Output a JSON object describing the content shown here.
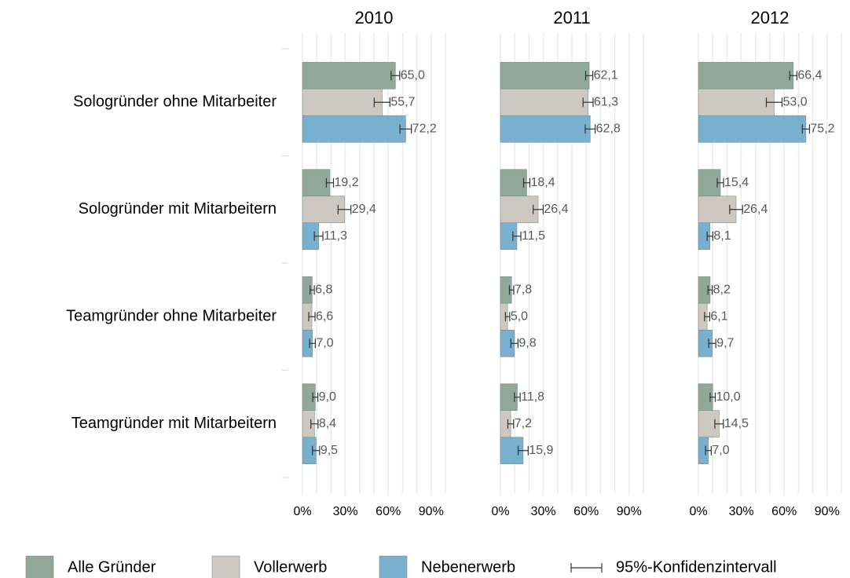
{
  "chart_data": [
    {
      "type": "bar",
      "orientation": "horizontal",
      "title": "2010",
      "categories": [
        "Sologründer ohne Mitarbeiter",
        "Sologründer mit Mitarbeitern",
        "Teamgründer ohne Mitarbeiter",
        "Teamgründer mit Mitarbeitern"
      ],
      "series": [
        {
          "name": "Alle Gründer",
          "color": "#8fa89a",
          "values": [
            65.0,
            19.2,
            6.8,
            9.0
          ],
          "value_labels": [
            "65,0",
            "19,2",
            "6,8",
            "9,0"
          ],
          "errors": [
            3.0,
            2.5,
            1.5,
            1.8
          ]
        },
        {
          "name": "Vollerwerb",
          "color": "#cdc8c2",
          "values": [
            55.7,
            29.4,
            6.6,
            8.4
          ],
          "value_labels": [
            "55,7",
            "29,4",
            "6,6",
            "8,4"
          ],
          "errors": [
            5.5,
            4.5,
            2.2,
            2.5
          ]
        },
        {
          "name": "Nebenerwerb",
          "color": "#79b0cf",
          "values": [
            72.2,
            11.3,
            7.0,
            9.5
          ],
          "value_labels": [
            "72,2",
            "11,3",
            "7,0",
            "9,5"
          ],
          "errors": [
            4.0,
            3.0,
            2.0,
            2.5
          ]
        }
      ],
      "error_label": "95%-Konfidenzintervall",
      "xlim": [
        -8,
        108
      ],
      "xticks": [
        {
          "value": 0,
          "label": "0%"
        },
        {
          "value": 30,
          "label": "30%"
        },
        {
          "value": 60,
          "label": "60%"
        },
        {
          "value": 90,
          "label": "90%"
        }
      ],
      "grid_xticks": [
        0,
        10,
        20,
        30,
        40,
        50,
        60,
        70,
        80,
        90,
        100
      ],
      "grid": true
    },
    {
      "type": "bar",
      "orientation": "horizontal",
      "title": "2011",
      "series": [
        {
          "name": "Alle Gründer",
          "color": "#8fa89a",
          "values": [
            62.1,
            18.4,
            7.8,
            11.8
          ],
          "value_labels": [
            "62,1",
            "18,4",
            "7,8",
            "11,8"
          ],
          "errors": [
            2.5,
            2.2,
            1.5,
            2.0
          ]
        },
        {
          "name": "Vollerwerb",
          "color": "#cdc8c2",
          "values": [
            61.3,
            26.4,
            5.0,
            7.2
          ],
          "value_labels": [
            "61,3",
            "26,4",
            "5,0",
            "7,2"
          ],
          "errors": [
            3.5,
            3.5,
            1.5,
            2.0
          ]
        },
        {
          "name": "Nebenerwerb",
          "color": "#79b0cf",
          "values": [
            62.8,
            11.5,
            9.8,
            15.9
          ],
          "value_labels": [
            "62,8",
            "11,5",
            "9,8",
            "15,9"
          ],
          "errors": [
            3.5,
            2.8,
            2.5,
            3.5
          ]
        }
      ],
      "xlim": [
        -8,
        108
      ],
      "xticks": [
        {
          "value": 0,
          "label": "0%"
        },
        {
          "value": 30,
          "label": "30%"
        },
        {
          "value": 60,
          "label": "60%"
        },
        {
          "value": 90,
          "label": "90%"
        }
      ],
      "grid_xticks": [
        0,
        10,
        20,
        30,
        40,
        50,
        60,
        70,
        80,
        90,
        100
      ],
      "grid": true
    },
    {
      "type": "bar",
      "orientation": "horizontal",
      "title": "2012",
      "series": [
        {
          "name": "Alle Gründer",
          "color": "#8fa89a",
          "values": [
            66.4,
            15.4,
            8.2,
            10.0
          ],
          "value_labels": [
            "66,4",
            "15,4",
            "8,2",
            "10,0"
          ],
          "errors": [
            2.5,
            2.2,
            1.5,
            1.8
          ]
        },
        {
          "name": "Vollerwerb",
          "color": "#cdc8c2",
          "values": [
            53.0,
            26.4,
            6.1,
            14.5
          ],
          "value_labels": [
            "53,0",
            "26,4",
            "6,1",
            "14,5"
          ],
          "errors": [
            5.5,
            4.5,
            1.8,
            3.0
          ]
        },
        {
          "name": "Nebenerwerb",
          "color": "#79b0cf",
          "values": [
            75.2,
            8.1,
            9.7,
            7.0
          ],
          "value_labels": [
            "75,2",
            "8,1",
            "9,7",
            "7,0"
          ],
          "errors": [
            2.5,
            2.0,
            2.5,
            2.0
          ]
        }
      ],
      "xlim": [
        -8,
        108
      ],
      "xticks": [
        {
          "value": 0,
          "label": "0%"
        },
        {
          "value": 30,
          "label": "30%"
        },
        {
          "value": 60,
          "label": "60%"
        },
        {
          "value": 90,
          "label": "90%"
        }
      ],
      "grid_xticks": [
        0,
        10,
        20,
        30,
        40,
        50,
        60,
        70,
        80,
        90,
        100
      ],
      "grid": true
    }
  ]
}
